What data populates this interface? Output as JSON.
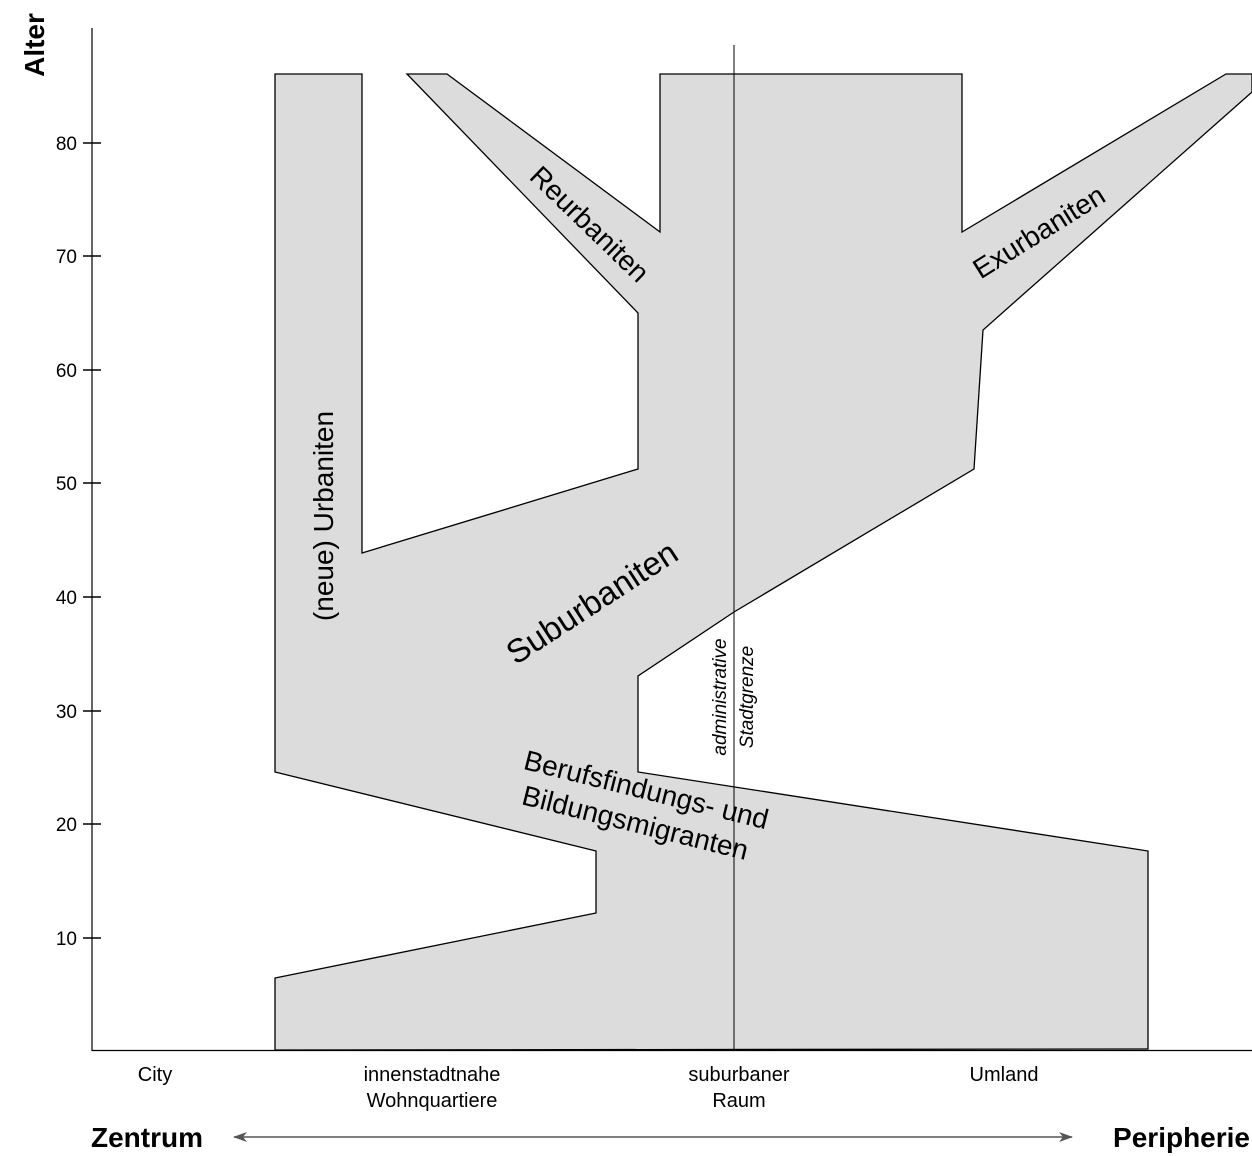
{
  "y_axis": {
    "title": "Alter",
    "ticks": [
      {
        "label": "80",
        "value": 80
      },
      {
        "label": "70",
        "value": 70
      },
      {
        "label": "60",
        "value": 60
      },
      {
        "label": "50",
        "value": 50
      },
      {
        "label": "40",
        "value": 40
      },
      {
        "label": "30",
        "value": 30
      },
      {
        "label": "20",
        "value": 20
      },
      {
        "label": "10",
        "value": 10
      }
    ]
  },
  "x_zones": {
    "city": "City",
    "inner_line1": "innenstadtnahe",
    "inner_line2": "Wohnquartiere",
    "suburban_line1": "suburbaner",
    "suburban_line2": "Raum",
    "umland": "Umland"
  },
  "direction": {
    "left": "Zentrum",
    "right": "Peripherie"
  },
  "boundary": {
    "line1": "administrative",
    "line2": "Stadtgrenze"
  },
  "flows": {
    "urbaniten": "(neue) Urbaniten",
    "reurbaniten": "Reurbaniten",
    "exurbaniten": "Exurbaniten",
    "suburbaniten": "Suburbaniten",
    "berufs_line1": "Berufsfindungs- und",
    "berufs_line2": "Bildungsmigranten"
  },
  "colors": {
    "fill": "#dcdcdc",
    "stroke": "#000000"
  }
}
